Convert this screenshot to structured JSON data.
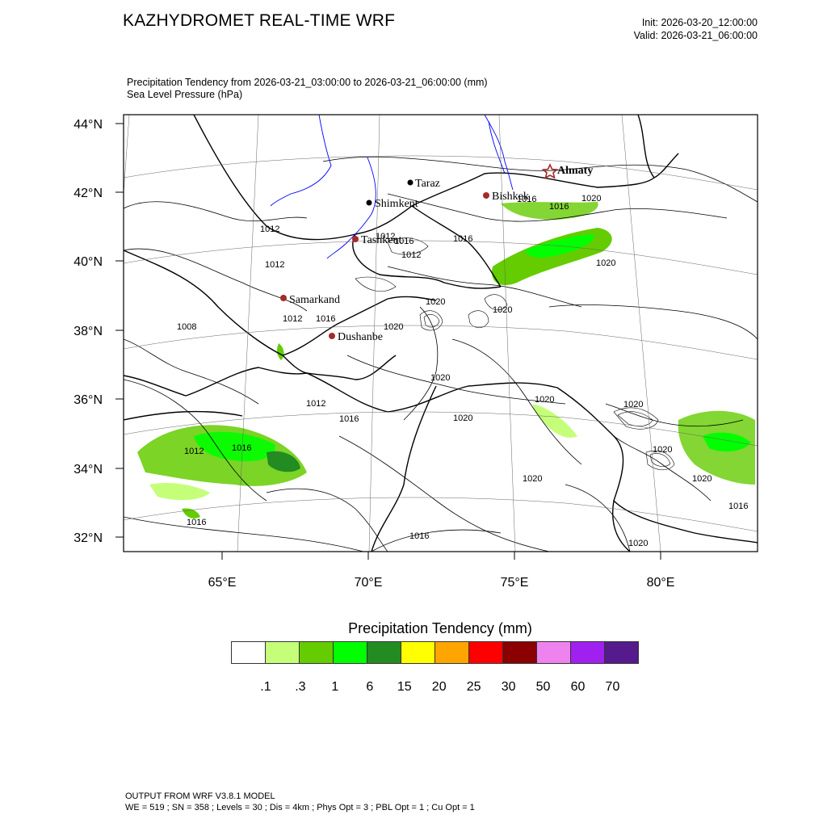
{
  "header": {
    "title": "KAZHYDROMET REAL-TIME WRF",
    "init": "Init: 2026-03-20_12:00:00",
    "valid": "Valid: 2026-03-21_06:00:00",
    "subtitle_line1": "Precipitation Tendency from 2026-03-21_03:00:00 to 2026-03-21_06:00:00   (mm)",
    "subtitle_line2": "Sea Level Pressure   (hPa)"
  },
  "map": {
    "lat_labels": [
      "44°N",
      "42°N",
      "40°N",
      "38°N",
      "36°N",
      "34°N",
      "32°N"
    ],
    "lon_labels": [
      "65°E",
      "70°E",
      "75°E",
      "80°E"
    ],
    "cities": [
      {
        "name": "Almaty",
        "marker": "star",
        "color": "#a52a2a"
      },
      {
        "name": "Taraz",
        "marker": "dot",
        "color": "#000000"
      },
      {
        "name": "Bishkek",
        "marker": "dot",
        "color": "#a52a2a"
      },
      {
        "name": "Shimkent",
        "marker": "dot",
        "color": "#000000"
      },
      {
        "name": "Tashkent",
        "marker": "dot",
        "color": "#a52a2a"
      },
      {
        "name": "Samarkand",
        "marker": "dot",
        "color": "#a52a2a"
      },
      {
        "name": "Dushanbe",
        "marker": "dot",
        "color": "#a52a2a"
      }
    ],
    "isobar_labels": [
      "1012",
      "1012",
      "1008",
      "1012",
      "1016",
      "1012",
      "1012",
      "1016",
      "1016",
      "1016",
      "1016",
      "1016",
      "1016",
      "1020",
      "1020",
      "1020",
      "1020",
      "1020",
      "1020",
      "1020",
      "1020",
      "1020",
      "1020",
      "1020",
      "1020",
      "1020",
      "1016",
      "1012",
      "1012",
      "1016",
      "1016"
    ]
  },
  "legend": {
    "title": "Precipitation Tendency  (mm)",
    "colors": [
      "#ffffff",
      "#c5ff7a",
      "#64cc00",
      "#00ff00",
      "#228b22",
      "#ffff00",
      "#ffa500",
      "#ff0000",
      "#8b0000",
      "#ee82ee",
      "#a020f0",
      "#551a8b"
    ],
    "labels": [
      ".1",
      ".3",
      "1",
      "6",
      "15",
      "20",
      "25",
      "30",
      "50",
      "60",
      "70"
    ]
  },
  "footer": {
    "line1": "OUTPUT FROM WRF V3.8.1 MODEL",
    "line2": "WE = 519 ; SN = 358 ; Levels = 30 ; Dis = 4km ; Phys Opt = 3 ; PBL Opt = 1 ; Cu Opt = 1"
  }
}
